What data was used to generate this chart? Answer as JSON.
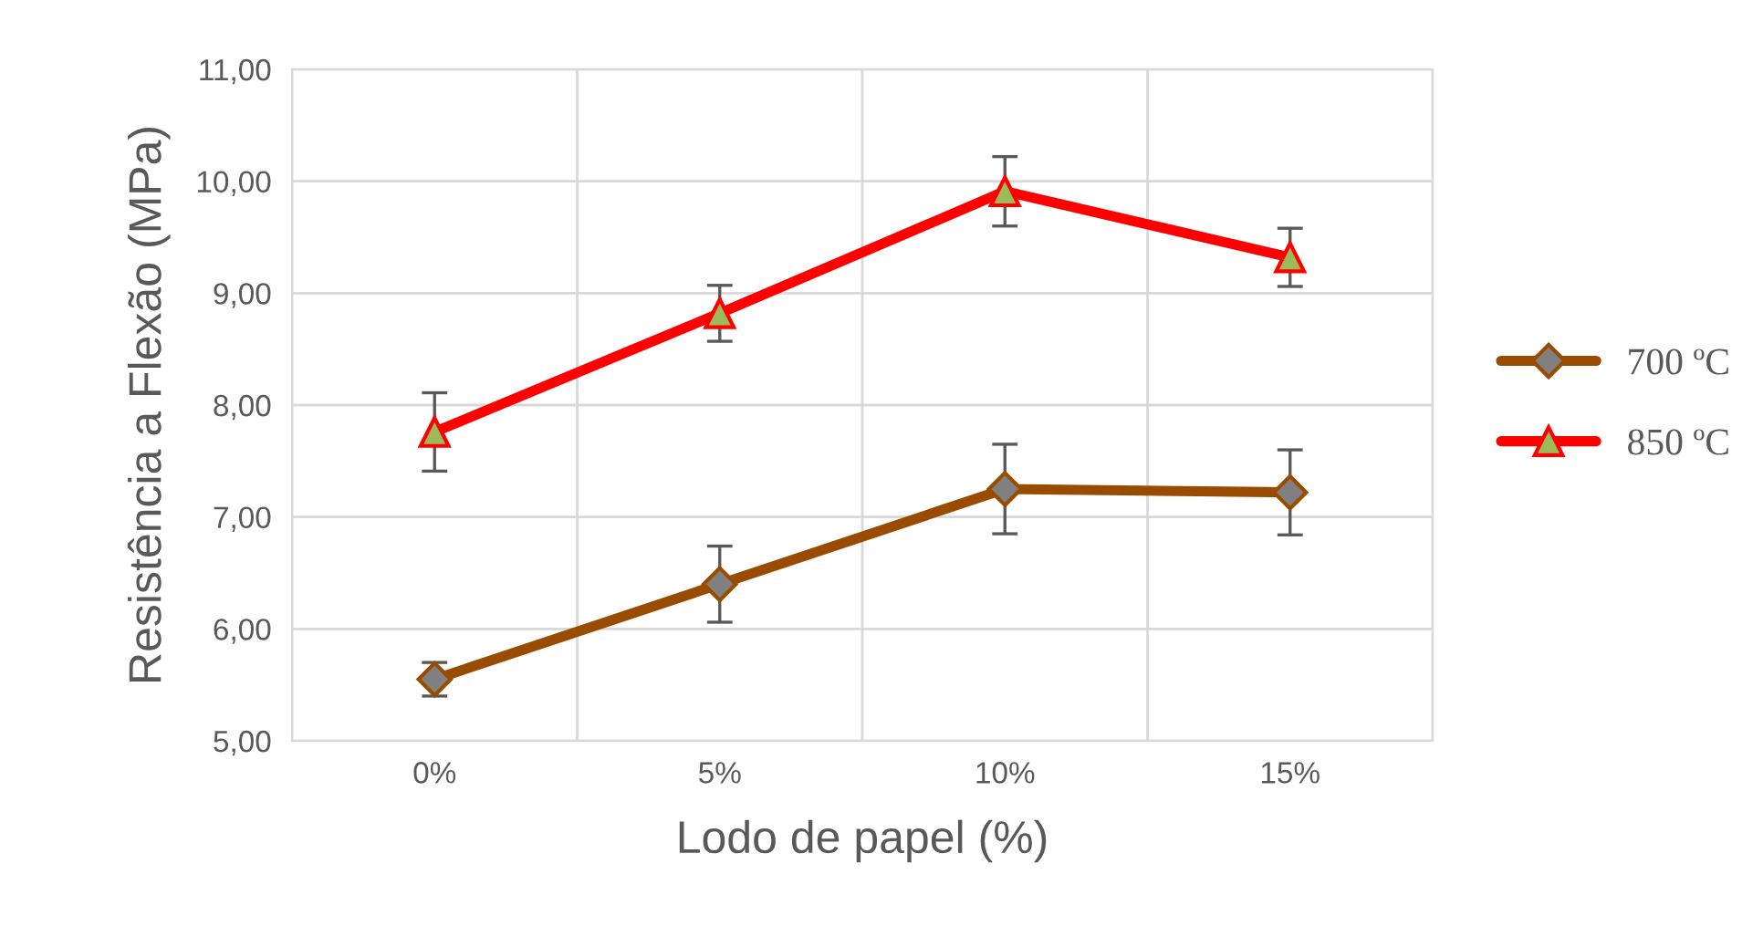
{
  "chart_data": {
    "type": "line",
    "xlabel": "Lodo de papel (%)",
    "ylabel": "Resistência a Flexão (MPa)",
    "categories": [
      "0%",
      "5%",
      "10%",
      "15%"
    ],
    "ylim": [
      5,
      11
    ],
    "yticks": [
      {
        "value": 5,
        "label": "5,00"
      },
      {
        "value": 6,
        "label": "6,00"
      },
      {
        "value": 7,
        "label": "7,00"
      },
      {
        "value": 8,
        "label": "8,00"
      },
      {
        "value": 9,
        "label": "9,00"
      },
      {
        "value": 10,
        "label": "10,00"
      },
      {
        "value": 11,
        "label": "11,00"
      }
    ],
    "grid": true,
    "legend": "right",
    "series": [
      {
        "name": "700 ºC",
        "color": "#994c00",
        "marker": "diamond",
        "values": [
          5.55,
          6.4,
          7.25,
          7.22
        ],
        "errors": [
          0.15,
          0.34,
          0.4,
          0.38
        ]
      },
      {
        "name": "850 ºC",
        "color": "#ff0000",
        "marker": "triangle",
        "values": [
          7.76,
          8.82,
          9.91,
          9.32
        ],
        "errors": [
          0.35,
          0.25,
          0.31,
          0.26
        ]
      }
    ]
  }
}
